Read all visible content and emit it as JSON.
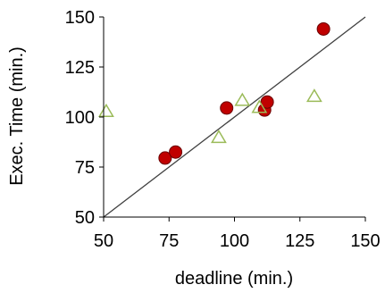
{
  "chart_data": {
    "type": "scatter",
    "xlabel": "deadline (min.)",
    "ylabel": "Exec. Time (min.)",
    "xlim": [
      50,
      150
    ],
    "ylim": [
      50,
      150
    ],
    "x_ticks": [
      "50",
      "75",
      "100",
      "125",
      "150"
    ],
    "y_ticks": [
      "50",
      "75",
      "100",
      "125",
      "150"
    ],
    "grid": false,
    "legend": "none",
    "reference_line": {
      "from": [
        50,
        50
      ],
      "to": [
        150,
        150
      ],
      "color": "#404040"
    },
    "series": [
      {
        "marker": "circle",
        "color": "#c00000",
        "edge_color": "#6b0000",
        "points": [
          {
            "x": 73.5,
            "y": 79.5
          },
          {
            "x": 77.5,
            "y": 82.5
          },
          {
            "x": 97,
            "y": 104.5
          },
          {
            "x": 111.5,
            "y": 103.5
          },
          {
            "x": 112.5,
            "y": 107.5
          },
          {
            "x": 134,
            "y": 144
          }
        ]
      },
      {
        "marker": "triangle",
        "color": "#9bbb59",
        "edge_color": "#9bbb59",
        "points": [
          {
            "x": 51,
            "y": 102.5
          },
          {
            "x": 94,
            "y": 89.5
          },
          {
            "x": 103,
            "y": 108
          },
          {
            "x": 109.5,
            "y": 104.5
          },
          {
            "x": 130.5,
            "y": 110
          }
        ]
      }
    ]
  }
}
